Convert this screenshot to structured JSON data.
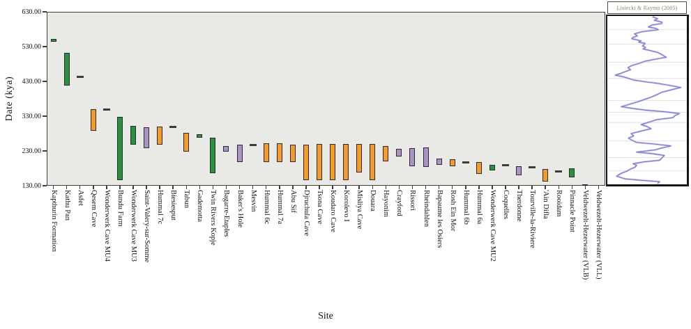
{
  "figure": {
    "y_axis_title": "Date (kya)",
    "x_axis_title": "Site",
    "inset_title": "Lisiecki & Raymo (2005)"
  },
  "chart_data": {
    "type": "bar",
    "subtype": "floating-range-bars",
    "title": "",
    "xlabel": "Site",
    "ylabel": "Date (kya)",
    "ylim": [
      130,
      630
    ],
    "yticks": [
      130,
      230,
      330,
      430,
      530,
      630
    ],
    "ytick_labels": [
      "130.00",
      "230.00",
      "330.00",
      "430.00",
      "530.00",
      "630.00"
    ],
    "grid": false,
    "colors": {
      "green": "#28913f",
      "orange": "#f49a2d",
      "purple": "#ab92c5",
      "dark": "#3a3a3a",
      "plot_bg": "#e9e9e6",
      "curve": "#7678d0",
      "curve_halo": "#c9c9ef"
    },
    "sites": [
      {
        "label": "Kapthurin Formation",
        "style": "bar",
        "color": "green",
        "range": [
          545,
          553
        ]
      },
      {
        "label": "Kathu Pan",
        "style": "bar",
        "color": "green",
        "range": [
          418,
          512
        ]
      },
      {
        "label": "Asfet",
        "style": "dash",
        "color": "dark",
        "value": 444
      },
      {
        "label": "Qesem Cave",
        "style": "bar",
        "color": "orange",
        "range": [
          289,
          350
        ]
      },
      {
        "label": "Wonderwerk Cave MU4",
        "style": "dash",
        "color": "dark",
        "value": 350
      },
      {
        "label": "Bundu Farm",
        "style": "bar",
        "color": "green",
        "range": [
          147,
          329
        ]
      },
      {
        "label": "Wonderwerk Cave MU3",
        "style": "bar",
        "color": "green",
        "range": [
          248,
          303
        ]
      },
      {
        "label": "Saint-Valery-sur-Somme",
        "style": "bar",
        "color": "purple",
        "range": [
          238,
          299
        ]
      },
      {
        "label": "Hummal 7c",
        "style": "bar",
        "color": "orange",
        "range": [
          248,
          301
        ]
      },
      {
        "label": "Biesiesput",
        "style": "dash",
        "color": "dark",
        "value": 299
      },
      {
        "label": "Tabun",
        "style": "bar",
        "color": "orange",
        "range": [
          228,
          282
        ]
      },
      {
        "label": "Gademotta",
        "style": "bar",
        "color": "green",
        "range": [
          269,
          279
        ]
      },
      {
        "label": "Twin Rivers Kopje",
        "style": "bar",
        "color": "green",
        "range": [
          167,
          269
        ]
      },
      {
        "label": "Bagarre-Etaples",
        "style": "bar",
        "color": "purple",
        "range": [
          228,
          245
        ]
      },
      {
        "label": "Baker's Hole",
        "style": "bar",
        "color": "purple",
        "range": [
          198,
          248
        ]
      },
      {
        "label": "Mesvin",
        "style": "dash",
        "color": "dark",
        "value": 247
      },
      {
        "label": "Hummal 6c",
        "style": "bar",
        "color": "orange",
        "range": [
          198,
          252
        ]
      },
      {
        "label": "Hummal 7a",
        "style": "bar",
        "color": "orange",
        "range": [
          198,
          252
        ]
      },
      {
        "label": "Abu Sif",
        "style": "bar",
        "color": "orange",
        "range": [
          198,
          248
        ]
      },
      {
        "label": "Djruchula Cave",
        "style": "bar",
        "color": "orange",
        "range": [
          147,
          249
        ]
      },
      {
        "label": "Tsona Cave",
        "style": "bar",
        "color": "orange",
        "range": [
          147,
          250
        ]
      },
      {
        "label": "Koudaro Cave",
        "style": "bar",
        "color": "orange",
        "range": [
          147,
          250
        ]
      },
      {
        "label": "Korolevo I",
        "style": "bar",
        "color": "orange",
        "range": [
          147,
          250
        ]
      },
      {
        "label": "Misliya Cave",
        "style": "bar",
        "color": "orange",
        "range": [
          169,
          250
        ]
      },
      {
        "label": "Douara",
        "style": "bar",
        "color": "orange",
        "range": [
          147,
          250
        ]
      },
      {
        "label": "Hayonim",
        "style": "bar",
        "color": "orange",
        "range": [
          201,
          244
        ]
      },
      {
        "label": "Crayford",
        "style": "bar",
        "color": "purple",
        "range": [
          215,
          236
        ]
      },
      {
        "label": "Rissori",
        "style": "bar",
        "color": "purple",
        "range": [
          187,
          238
        ]
      },
      {
        "label": "Rheindahlen",
        "style": "bar",
        "color": "purple",
        "range": [
          185,
          240
        ]
      },
      {
        "label": "Bapaume les Osiers",
        "style": "bar",
        "color": "purple",
        "range": [
          190,
          208
        ]
      },
      {
        "label": "Rosh Ein Mor",
        "style": "bar",
        "color": "orange",
        "range": [
          187,
          207
        ]
      },
      {
        "label": "Hummal 6b",
        "style": "dash",
        "color": "dark",
        "value": 198
      },
      {
        "label": "Hummal 6a",
        "style": "bar",
        "color": "orange",
        "range": [
          165,
          199
        ]
      },
      {
        "label": "Wonderwerk Cave MU2",
        "style": "bar",
        "color": "green",
        "range": [
          175,
          191
        ]
      },
      {
        "label": "Coquelles",
        "style": "dash",
        "color": "dark",
        "value": 189
      },
      {
        "label": "Therdonne",
        "style": "bar",
        "color": "purple",
        "range": [
          160,
          187
        ]
      },
      {
        "label": "Tourville-la-Riviere",
        "style": "dash",
        "color": "dark",
        "value": 184
      },
      {
        "label": "'Ain Difla",
        "style": "bar",
        "color": "orange",
        "range": [
          142,
          179
        ]
      },
      {
        "label": "Rooidam",
        "style": "dash",
        "color": "dark",
        "value": 172
      },
      {
        "label": "Pinnacle Point",
        "style": "bar",
        "color": "green",
        "range": [
          154,
          181
        ]
      },
      {
        "label": "Veldwezelt-Hezerwater (VLB)",
        "style": "bar",
        "color": "green",
        "range": [
          126,
          134
        ]
      },
      {
        "label": "Veldwezelt-Hezerwater (VLL)",
        "style": "none",
        "color": "dark",
        "range": null
      }
    ],
    "inset": {
      "title": "Lisiecki & Raymo (2005)",
      "type": "line",
      "orientation": "vertical-time-axis",
      "time_span_kya": [
        630,
        130
      ],
      "gridlines_t": [
        0.078,
        0.165,
        0.272,
        0.37,
        0.502,
        0.572,
        0.634,
        0.745,
        0.844,
        0.922
      ],
      "points_tv": [
        [
          0.0,
          0.57
        ],
        [
          0.012,
          0.64
        ],
        [
          0.021,
          0.596
        ],
        [
          0.033,
          0.7
        ],
        [
          0.041,
          0.693
        ],
        [
          0.05,
          0.56
        ],
        [
          0.062,
          0.518
        ],
        [
          0.07,
          0.62
        ],
        [
          0.078,
          0.649
        ],
        [
          0.09,
          0.43
        ],
        [
          0.103,
          0.333
        ],
        [
          0.115,
          0.37
        ],
        [
          0.125,
          0.31
        ],
        [
          0.132,
          0.298
        ],
        [
          0.145,
          0.42
        ],
        [
          0.152,
          0.39
        ],
        [
          0.16,
          0.474
        ],
        [
          0.175,
          0.44
        ],
        [
          0.185,
          0.48
        ],
        [
          0.193,
          0.447
        ],
        [
          0.205,
          0.56
        ],
        [
          0.214,
          0.64
        ],
        [
          0.228,
          0.7
        ],
        [
          0.243,
          0.754
        ],
        [
          0.255,
          0.6
        ],
        [
          0.267,
          0.474
        ],
        [
          0.28,
          0.39
        ],
        [
          0.292,
          0.3
        ],
        [
          0.305,
          0.246
        ],
        [
          0.318,
          0.28
        ],
        [
          0.329,
          0.211
        ],
        [
          0.34,
          0.15
        ],
        [
          0.35,
          0.079
        ],
        [
          0.362,
          0.2
        ],
        [
          0.37,
          0.26
        ],
        [
          0.379,
          0.316
        ],
        [
          0.39,
          0.48
        ],
        [
          0.399,
          0.64
        ],
        [
          0.41,
          0.78
        ],
        [
          0.424,
          0.947
        ],
        [
          0.438,
          0.82
        ],
        [
          0.453,
          0.693
        ],
        [
          0.465,
          0.64
        ],
        [
          0.481,
          0.561
        ],
        [
          0.495,
          0.47
        ],
        [
          0.51,
          0.377
        ],
        [
          0.524,
          0.27
        ],
        [
          0.539,
          0.158
        ],
        [
          0.55,
          0.32
        ],
        [
          0.56,
          0.491
        ],
        [
          0.57,
          0.75
        ],
        [
          0.58,
          0.93
        ],
        [
          0.592,
          0.87
        ],
        [
          0.605,
          0.842
        ],
        [
          0.617,
          0.623
        ],
        [
          0.63,
          0.54
        ],
        [
          0.646,
          0.421
        ],
        [
          0.658,
          0.5
        ],
        [
          0.671,
          0.553
        ],
        [
          0.685,
          0.42
        ],
        [
          0.7,
          0.289
        ],
        [
          0.714,
          0.32
        ],
        [
          0.728,
          0.254
        ],
        [
          0.74,
          0.3
        ],
        [
          0.753,
          0.36
        ],
        [
          0.763,
          0.6
        ],
        [
          0.774,
          0.816
        ],
        [
          0.786,
          0.7
        ],
        [
          0.798,
          0.605
        ],
        [
          0.811,
          0.36
        ],
        [
          0.82,
          0.56
        ],
        [
          0.831,
          0.728
        ],
        [
          0.845,
          0.7
        ],
        [
          0.86,
          0.667
        ],
        [
          0.87,
          0.45
        ],
        [
          0.881,
          0.316
        ],
        [
          0.89,
          0.36
        ],
        [
          0.901,
          0.342
        ],
        [
          0.913,
          0.28
        ],
        [
          0.926,
          0.228
        ],
        [
          0.94,
          0.15
        ],
        [
          0.955,
          0.096
        ],
        [
          0.963,
          0.15
        ],
        [
          0.971,
          0.202
        ],
        [
          0.98,
          0.42
        ],
        [
          0.988,
          0.667
        ],
        [
          1.0,
          0.64
        ]
      ]
    }
  }
}
